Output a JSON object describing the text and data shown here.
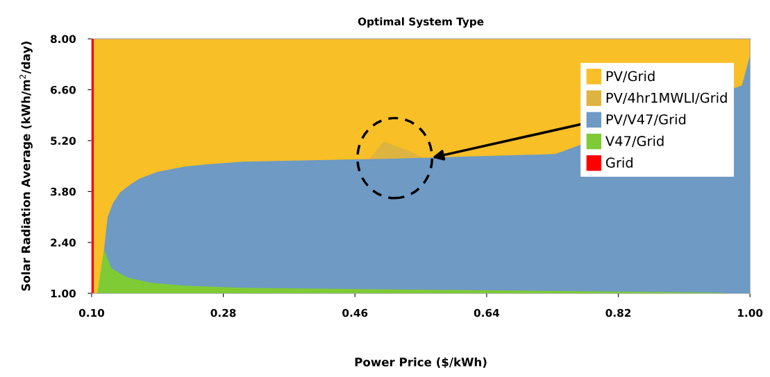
{
  "chart_data": {
    "type": "area",
    "title": "Optimal System Type",
    "xlabel": "Power Price ($/kWh)",
    "ylabel": "Solar Radiation Average (kWh/m$^{2}$/day)",
    "xlim": [
      0.1,
      1.0
    ],
    "ylim": [
      1.0,
      8.0
    ],
    "xticks": [
      {
        "value": 0.1,
        "label": "0.10"
      },
      {
        "value": 0.28,
        "label": "0.28"
      },
      {
        "value": 0.46,
        "label": "0.46"
      },
      {
        "value": 0.64,
        "label": "0.64"
      },
      {
        "value": 0.82,
        "label": "0.82"
      },
      {
        "value": 1.0,
        "label": "1.00"
      }
    ],
    "yticks": [
      {
        "value": 1.0,
        "label": "1.00"
      },
      {
        "value": 2.4,
        "label": "2.40"
      },
      {
        "value": 3.8,
        "label": "3.80"
      },
      {
        "value": 5.2,
        "label": "5.20"
      },
      {
        "value": 6.6,
        "label": "6.60"
      },
      {
        "value": 8.0,
        "label": "8.00"
      }
    ],
    "grid": false,
    "legend": "top right",
    "series": [
      {
        "name": "PV/Grid",
        "color": "#f8bf26",
        "x": [
          0.103,
          1.0
        ],
        "values": [
          8.0,
          8.0
        ]
      },
      {
        "name": "PV/4hr1MWLI/Grid",
        "color": "#ddb43f",
        "x": [
          0.481,
          0.499,
          0.506,
          0.535,
          0.551
        ],
        "values": [
          4.72,
          5.18,
          5.12,
          4.91,
          4.74
        ]
      },
      {
        "name": "PV/V47/Grid",
        "color": "#6e9ac4",
        "x": [
          0.117,
          0.119,
          0.122,
          0.129,
          0.139,
          0.152,
          0.165,
          0.19,
          0.228,
          0.26,
          0.307,
          0.502,
          0.734,
          0.989,
          1.0
        ],
        "values": [
          2.2,
          2.58,
          3.1,
          3.48,
          3.78,
          3.98,
          4.15,
          4.34,
          4.49,
          4.55,
          4.62,
          4.7,
          4.83,
          6.72,
          7.54
        ]
      },
      {
        "name": "V47/Grid",
        "color": "#7ecb35",
        "x": [
          0.108,
          0.113,
          0.117,
          0.127,
          0.148,
          0.181,
          0.228,
          0.307,
          0.544,
          0.958,
          0.97
        ],
        "values": [
          1.0,
          1.7,
          2.2,
          1.69,
          1.44,
          1.29,
          1.21,
          1.15,
          1.1,
          1.02,
          1.0
        ]
      },
      {
        "name": "Grid",
        "color": "#ff0000",
        "x": [
          0.1,
          0.103
        ],
        "values": [
          8.0,
          8.0
        ]
      }
    ]
  }
}
